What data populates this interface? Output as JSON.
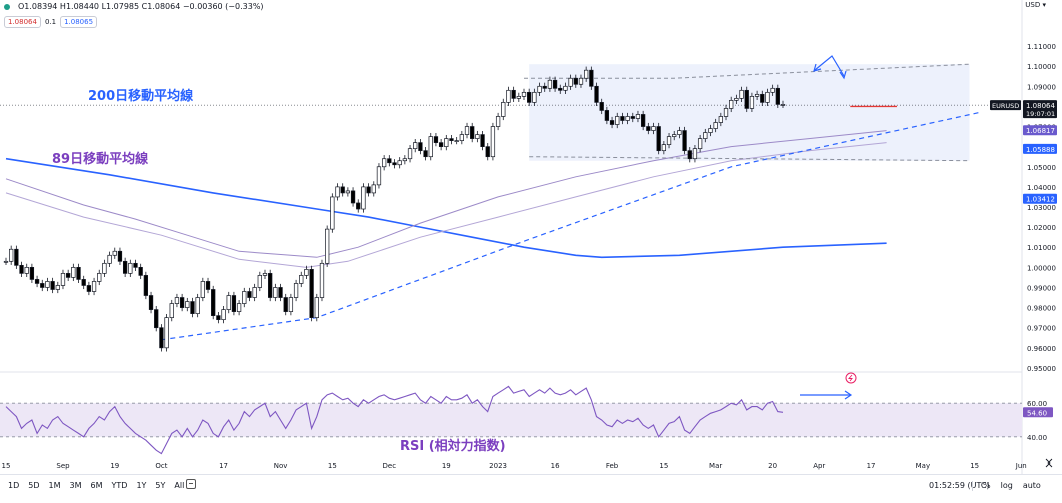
{
  "header": {
    "ohlc_text": "O1.08394 H1.08440 L1.07985 C1.08064 −0.00360 (−0.33%)",
    "sell_price": "1.08064",
    "spread": "0.1",
    "buy_price": "1.08065",
    "currency": "USD"
  },
  "annotations": {
    "ma200_label": "200日移動平均線",
    "ma89_label": "89日移動平均線",
    "rsi_label": "RSI (相対力指数)"
  },
  "colors": {
    "up": "#ffffff",
    "down": "#000000",
    "ma200": "#2962ff",
    "ma89": "#9c8ac8",
    "ma_outer": "#b3a6d6",
    "trendline": "#2962ff",
    "range_box": "#e8eefb",
    "rsi_line": "#7e57c2",
    "rsi_band": "#ede7f6",
    "support": "#e53935"
  },
  "bottom": {
    "ranges": [
      "1D",
      "5D",
      "1M",
      "3M",
      "6M",
      "YTD",
      "1Y",
      "5Y",
      "All"
    ],
    "clock": "01:52:59 (UTC)",
    "percent": "%",
    "log": "log",
    "auto": "auto"
  },
  "chart_data": {
    "type": "candlestick",
    "symbol": "EURUSD",
    "ylim": [
      0.945,
      1.115
    ],
    "y_ticks": [
      "1.11000",
      "1.10000",
      "1.09000",
      "1.08000",
      "1.07000",
      "1.06000",
      "1.05000",
      "1.04000",
      "1.03000",
      "1.02000",
      "1.01000",
      "1.00000",
      "0.99000",
      "0.98000",
      "0.97000",
      "0.96000",
      "0.95000"
    ],
    "x_labels": [
      {
        "label": "15",
        "i": 0
      },
      {
        "label": "Sep",
        "i": 11
      },
      {
        "label": "19",
        "i": 21
      },
      {
        "label": "Oct",
        "i": 30
      },
      {
        "label": "17",
        "i": 42
      },
      {
        "label": "Nov",
        "i": 53
      },
      {
        "label": "15",
        "i": 63
      },
      {
        "label": "Dec",
        "i": 74
      },
      {
        "label": "19",
        "i": 85
      },
      {
        "label": "2023",
        "i": 95
      },
      {
        "label": "16",
        "i": 106
      },
      {
        "label": "Feb",
        "i": 117
      },
      {
        "label": "15",
        "i": 127
      },
      {
        "label": "Mar",
        "i": 137
      },
      {
        "label": "20",
        "i": 148
      },
      {
        "label": "Apr",
        "i": 157
      },
      {
        "label": "17",
        "i": 167
      },
      {
        "label": "May",
        "i": 177
      },
      {
        "label": "15",
        "i": 187
      },
      {
        "label": "Jun",
        "i": 196
      }
    ],
    "closes": [
      1.003,
      1.009,
      1.001,
      0.997,
      1.0,
      0.994,
      0.992,
      0.99,
      0.993,
      0.989,
      0.991,
      0.997,
      0.995,
      1.0,
      0.994,
      0.991,
      0.988,
      0.993,
      0.997,
      1.002,
      1.006,
      1.008,
      1.003,
      0.997,
      1.002,
      1.0,
      0.996,
      0.986,
      0.979,
      0.97,
      0.96,
      0.975,
      0.982,
      0.985,
      0.98,
      0.983,
      0.977,
      0.985,
      0.993,
      0.989,
      0.976,
      0.974,
      0.979,
      0.986,
      0.978,
      0.982,
      0.988,
      0.985,
      0.99,
      0.996,
      0.997,
      0.985,
      0.99,
      0.985,
      0.978,
      0.985,
      0.992,
      0.996,
      0.999,
      0.975,
      0.985,
      1.002,
      1.019,
      1.035,
      1.04,
      1.037,
      1.038,
      1.032,
      1.029,
      1.04,
      1.037,
      1.041,
      1.05,
      1.054,
      1.052,
      1.051,
      1.053,
      1.054,
      1.059,
      1.062,
      1.058,
      1.055,
      1.065,
      1.062,
      1.06,
      1.064,
      1.063,
      1.063,
      1.066,
      1.07,
      1.064,
      1.066,
      1.06,
      1.055,
      1.07,
      1.075,
      1.082,
      1.088,
      1.084,
      1.085,
      1.087,
      1.082,
      1.087,
      1.09,
      1.089,
      1.093,
      1.089,
      1.088,
      1.09,
      1.094,
      1.091,
      1.094,
      1.098,
      1.09,
      1.082,
      1.078,
      1.073,
      1.071,
      1.075,
      1.073,
      1.075,
      1.074,
      1.076,
      1.07,
      1.068,
      1.07,
      1.058,
      1.061,
      1.065,
      1.066,
      1.068,
      1.058,
      1.054,
      1.059,
      1.064,
      1.067,
      1.069,
      1.072,
      1.075,
      1.079,
      1.083,
      1.084,
      1.088,
      1.079,
      1.085,
      1.086,
      1.082,
      1.087,
      1.089,
      1.081,
      1.081
    ],
    "ohlc_last": {
      "open": 1.08394,
      "high": 1.0844,
      "low": 1.07985,
      "close": 1.08064,
      "change": -0.0036,
      "change_pct": -0.33
    },
    "series": [
      {
        "name": "200日移動平均線",
        "points": [
          [
            0,
            1.054
          ],
          [
            20,
            1.046
          ],
          [
            40,
            1.037
          ],
          [
            60,
            1.029
          ],
          [
            70,
            1.025
          ],
          [
            80,
            1.02
          ],
          [
            90,
            1.015
          ],
          [
            100,
            1.01
          ],
          [
            110,
            1.006
          ],
          [
            115,
            1.005
          ],
          [
            130,
            1.006
          ],
          [
            150,
            1.01
          ],
          [
            170,
            1.012
          ]
        ]
      },
      {
        "name": "89日移動平均線",
        "points": [
          [
            0,
            1.044
          ],
          [
            15,
            1.031
          ],
          [
            25,
            1.024
          ],
          [
            35,
            1.016
          ],
          [
            45,
            1.008
          ],
          [
            55,
            1.006
          ],
          [
            60,
            1.005
          ],
          [
            68,
            1.01
          ],
          [
            80,
            1.022
          ],
          [
            95,
            1.035
          ],
          [
            110,
            1.045
          ],
          [
            125,
            1.053
          ],
          [
            140,
            1.06
          ],
          [
            155,
            1.064
          ],
          [
            170,
            1.068
          ]
        ]
      },
      {
        "name": "",
        "points": [
          [
            0,
            1.037
          ],
          [
            15,
            1.025
          ],
          [
            30,
            1.016
          ],
          [
            45,
            1.004
          ],
          [
            58,
            1.0
          ],
          [
            66,
            1.003
          ],
          [
            80,
            1.015
          ],
          [
            95,
            1.025
          ],
          [
            110,
            1.035
          ],
          [
            125,
            1.045
          ],
          [
            140,
            1.053
          ],
          [
            155,
            1.058
          ],
          [
            170,
            1.062
          ]
        ]
      },
      {
        "name": "",
        "points": [
          [
            30,
            0.964
          ],
          [
            60,
            0.975
          ],
          [
            100,
            1.013
          ],
          [
            140,
            1.05
          ],
          [
            188,
            1.077
          ]
        ]
      },
      {
        "name": "",
        "points": [
          [
            100,
            1.094
          ],
          [
            129,
            1.094
          ],
          [
            186,
            1.101
          ]
        ]
      },
      {
        "name": "",
        "points": [
          [
            101,
            1.055
          ],
          [
            186,
            1.053
          ]
        ]
      },
      {
        "name": "",
        "points": [
          [
            163,
            1.08
          ],
          [
            172,
            1.08
          ]
        ]
      }
    ],
    "price_tags": [
      {
        "label": "EURUSD",
        "value": 1.08064,
        "text": "1.08064",
        "sub": "19:07:01",
        "color": "#131722"
      },
      {
        "value": 1.06817,
        "text": "1.06817",
        "color": "#6a5acd"
      },
      {
        "value": 1.05888,
        "text": "1.05888",
        "color": "#2962ff"
      },
      {
        "value": 1.03412,
        "text": "1.03412",
        "color": "#2962ff"
      }
    ],
    "range_box": {
      "x0": 101,
      "x1": 186,
      "y0": 1.053,
      "y1": 1.101
    },
    "rsi": {
      "value_text": "54.60",
      "ticks": [
        "60.00",
        "40.00"
      ],
      "ylim": [
        25,
        75
      ],
      "band": [
        40,
        60
      ],
      "values": [
        58,
        55,
        52,
        45,
        48,
        50,
        42,
        47,
        45,
        50,
        52,
        48,
        46,
        44,
        42,
        40,
        45,
        48,
        52,
        50,
        55,
        58,
        52,
        48,
        45,
        42,
        40,
        38,
        35,
        32,
        30,
        36,
        42,
        44,
        40,
        45,
        40,
        44,
        50,
        48,
        42,
        40,
        46,
        50,
        44,
        48,
        55,
        52,
        56,
        58,
        60,
        52,
        55,
        50,
        45,
        50,
        56,
        58,
        60,
        45,
        52,
        62,
        65,
        66,
        64,
        62,
        63,
        60,
        58,
        62,
        60,
        62,
        64,
        65,
        63,
        62,
        63,
        64,
        65,
        66,
        62,
        60,
        64,
        62,
        60,
        64,
        62,
        62,
        63,
        65,
        60,
        62,
        58,
        55,
        64,
        66,
        68,
        70,
        66,
        67,
        68,
        64,
        66,
        68,
        66,
        69,
        66,
        65,
        66,
        68,
        65,
        67,
        69,
        62,
        52,
        50,
        47,
        46,
        50,
        48,
        50,
        49,
        51,
        47,
        45,
        47,
        40,
        44,
        48,
        49,
        52,
        44,
        42,
        46,
        50,
        52,
        54,
        55,
        56,
        58,
        60,
        59,
        62,
        56,
        58,
        58,
        56,
        60,
        61,
        55,
        54.6
      ]
    }
  }
}
